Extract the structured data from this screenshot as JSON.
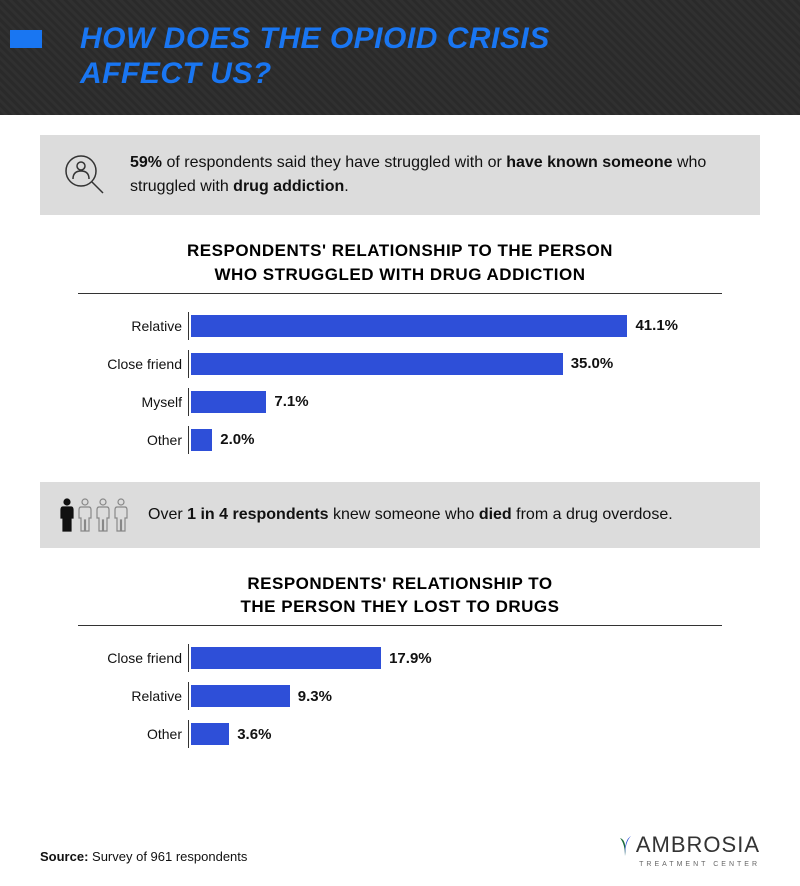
{
  "colors": {
    "accent_blue": "#1976f2",
    "bar_fill": "#2e4fd8",
    "header_bg": "#2a2a2a",
    "banner_bg": "#dcdcdc",
    "text": "#111111",
    "icon_stroke": "#333333",
    "person_highlight": "#111111",
    "person_muted": "#888888"
  },
  "header": {
    "title_line1": "HOW DOES THE OPIOID CRISIS",
    "title_line2": "AFFECT US?"
  },
  "banner1": {
    "pct": "59%",
    "text_before_pct": "",
    "text_after_pct_1": " of respondents said they have struggled with or ",
    "bold1": "have known someone",
    "text_mid": " who struggled with ",
    "bold2": "drug addiction",
    "text_after": "."
  },
  "chart1": {
    "type": "bar",
    "title_line1": "RESPONDENTS' RELATIONSHIP TO THE PERSON",
    "title_line2": "WHO STRUGGLED WITH DRUG ADDICTION",
    "x_max": 50,
    "bar_color": "#2e4fd8",
    "rows": [
      {
        "label": "Relative",
        "value": 41.1,
        "display": "41.1%"
      },
      {
        "label": "Close friend",
        "value": 35.0,
        "display": "35.0%"
      },
      {
        "label": "Myself",
        "value": 7.1,
        "display": "7.1%"
      },
      {
        "label": "Other",
        "value": 2.0,
        "display": "2.0%"
      }
    ]
  },
  "banner2": {
    "text_before": "Over ",
    "bold1": "1 in 4 respondents",
    "text_mid1": " knew someone who ",
    "bold2": "died",
    "text_mid2": " from a drug overdose.",
    "highlight_count": 1,
    "total_count": 4
  },
  "chart2": {
    "type": "bar",
    "title_line1": "RESPONDENTS' RELATIONSHIP TO",
    "title_line2": "THE PERSON THEY LOST TO DRUGS",
    "x_max": 50,
    "bar_color": "#2e4fd8",
    "rows": [
      {
        "label": "Close friend",
        "value": 17.9,
        "display": "17.9%"
      },
      {
        "label": "Relative",
        "value": 9.3,
        "display": "9.3%"
      },
      {
        "label": "Other",
        "value": 3.6,
        "display": "3.6%"
      }
    ]
  },
  "footer": {
    "label": "Source:",
    "text": " Survey of 961 respondents"
  },
  "brand": {
    "name": "AMBROSIA",
    "sub": "TREATMENT CENTER"
  }
}
